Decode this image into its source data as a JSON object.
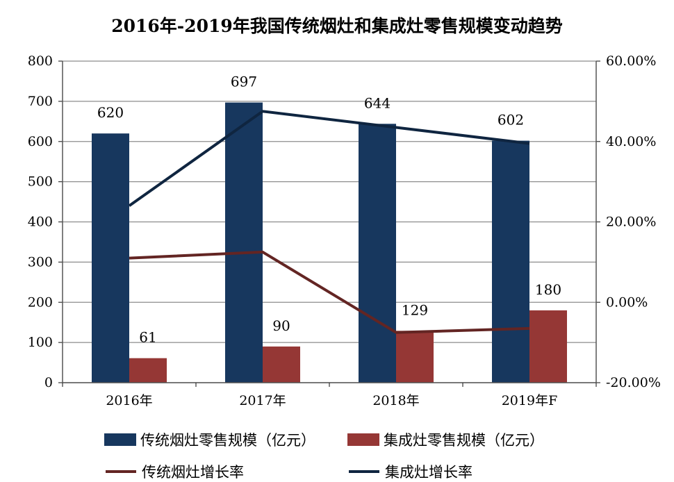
{
  "chart_data": {
    "type": "bar",
    "title": "2016年-2019年我国传统烟灶和集成灶零售规模变动趋势",
    "categories": [
      "2016年",
      "2017年",
      "2018年",
      "2019年F"
    ],
    "series": [
      {
        "name": "传统烟灶零售规模（亿元）",
        "kind": "bar",
        "axis": "left",
        "color": "#17375e",
        "values": [
          620,
          697,
          644,
          602
        ],
        "labels": [
          "620",
          "697",
          "644",
          "602"
        ]
      },
      {
        "name": "集成灶零售规模（亿元）",
        "kind": "bar",
        "axis": "left",
        "color": "#953735",
        "values": [
          61,
          90,
          129,
          180
        ],
        "labels": [
          "61",
          "90",
          "129",
          "180"
        ]
      },
      {
        "name": "传统烟灶增长率",
        "kind": "line",
        "axis": "right",
        "color": "#632523",
        "values": [
          11.0,
          12.5,
          -7.5,
          -6.5
        ]
      },
      {
        "name": "集成灶增长率",
        "kind": "line",
        "axis": "right",
        "color": "#0f2540",
        "values": [
          24.0,
          47.5,
          43.5,
          39.5
        ]
      }
    ],
    "y_left": {
      "min": 0,
      "max": 800,
      "ticks": [
        "0",
        "100",
        "200",
        "300",
        "400",
        "500",
        "600",
        "700",
        "800"
      ]
    },
    "y_right": {
      "min": -20,
      "max": 60,
      "ticks": [
        "-20.00%",
        "0.00%",
        "20.00%",
        "40.00%",
        "60.00%"
      ]
    },
    "grid": true,
    "legend_position": "bottom"
  }
}
